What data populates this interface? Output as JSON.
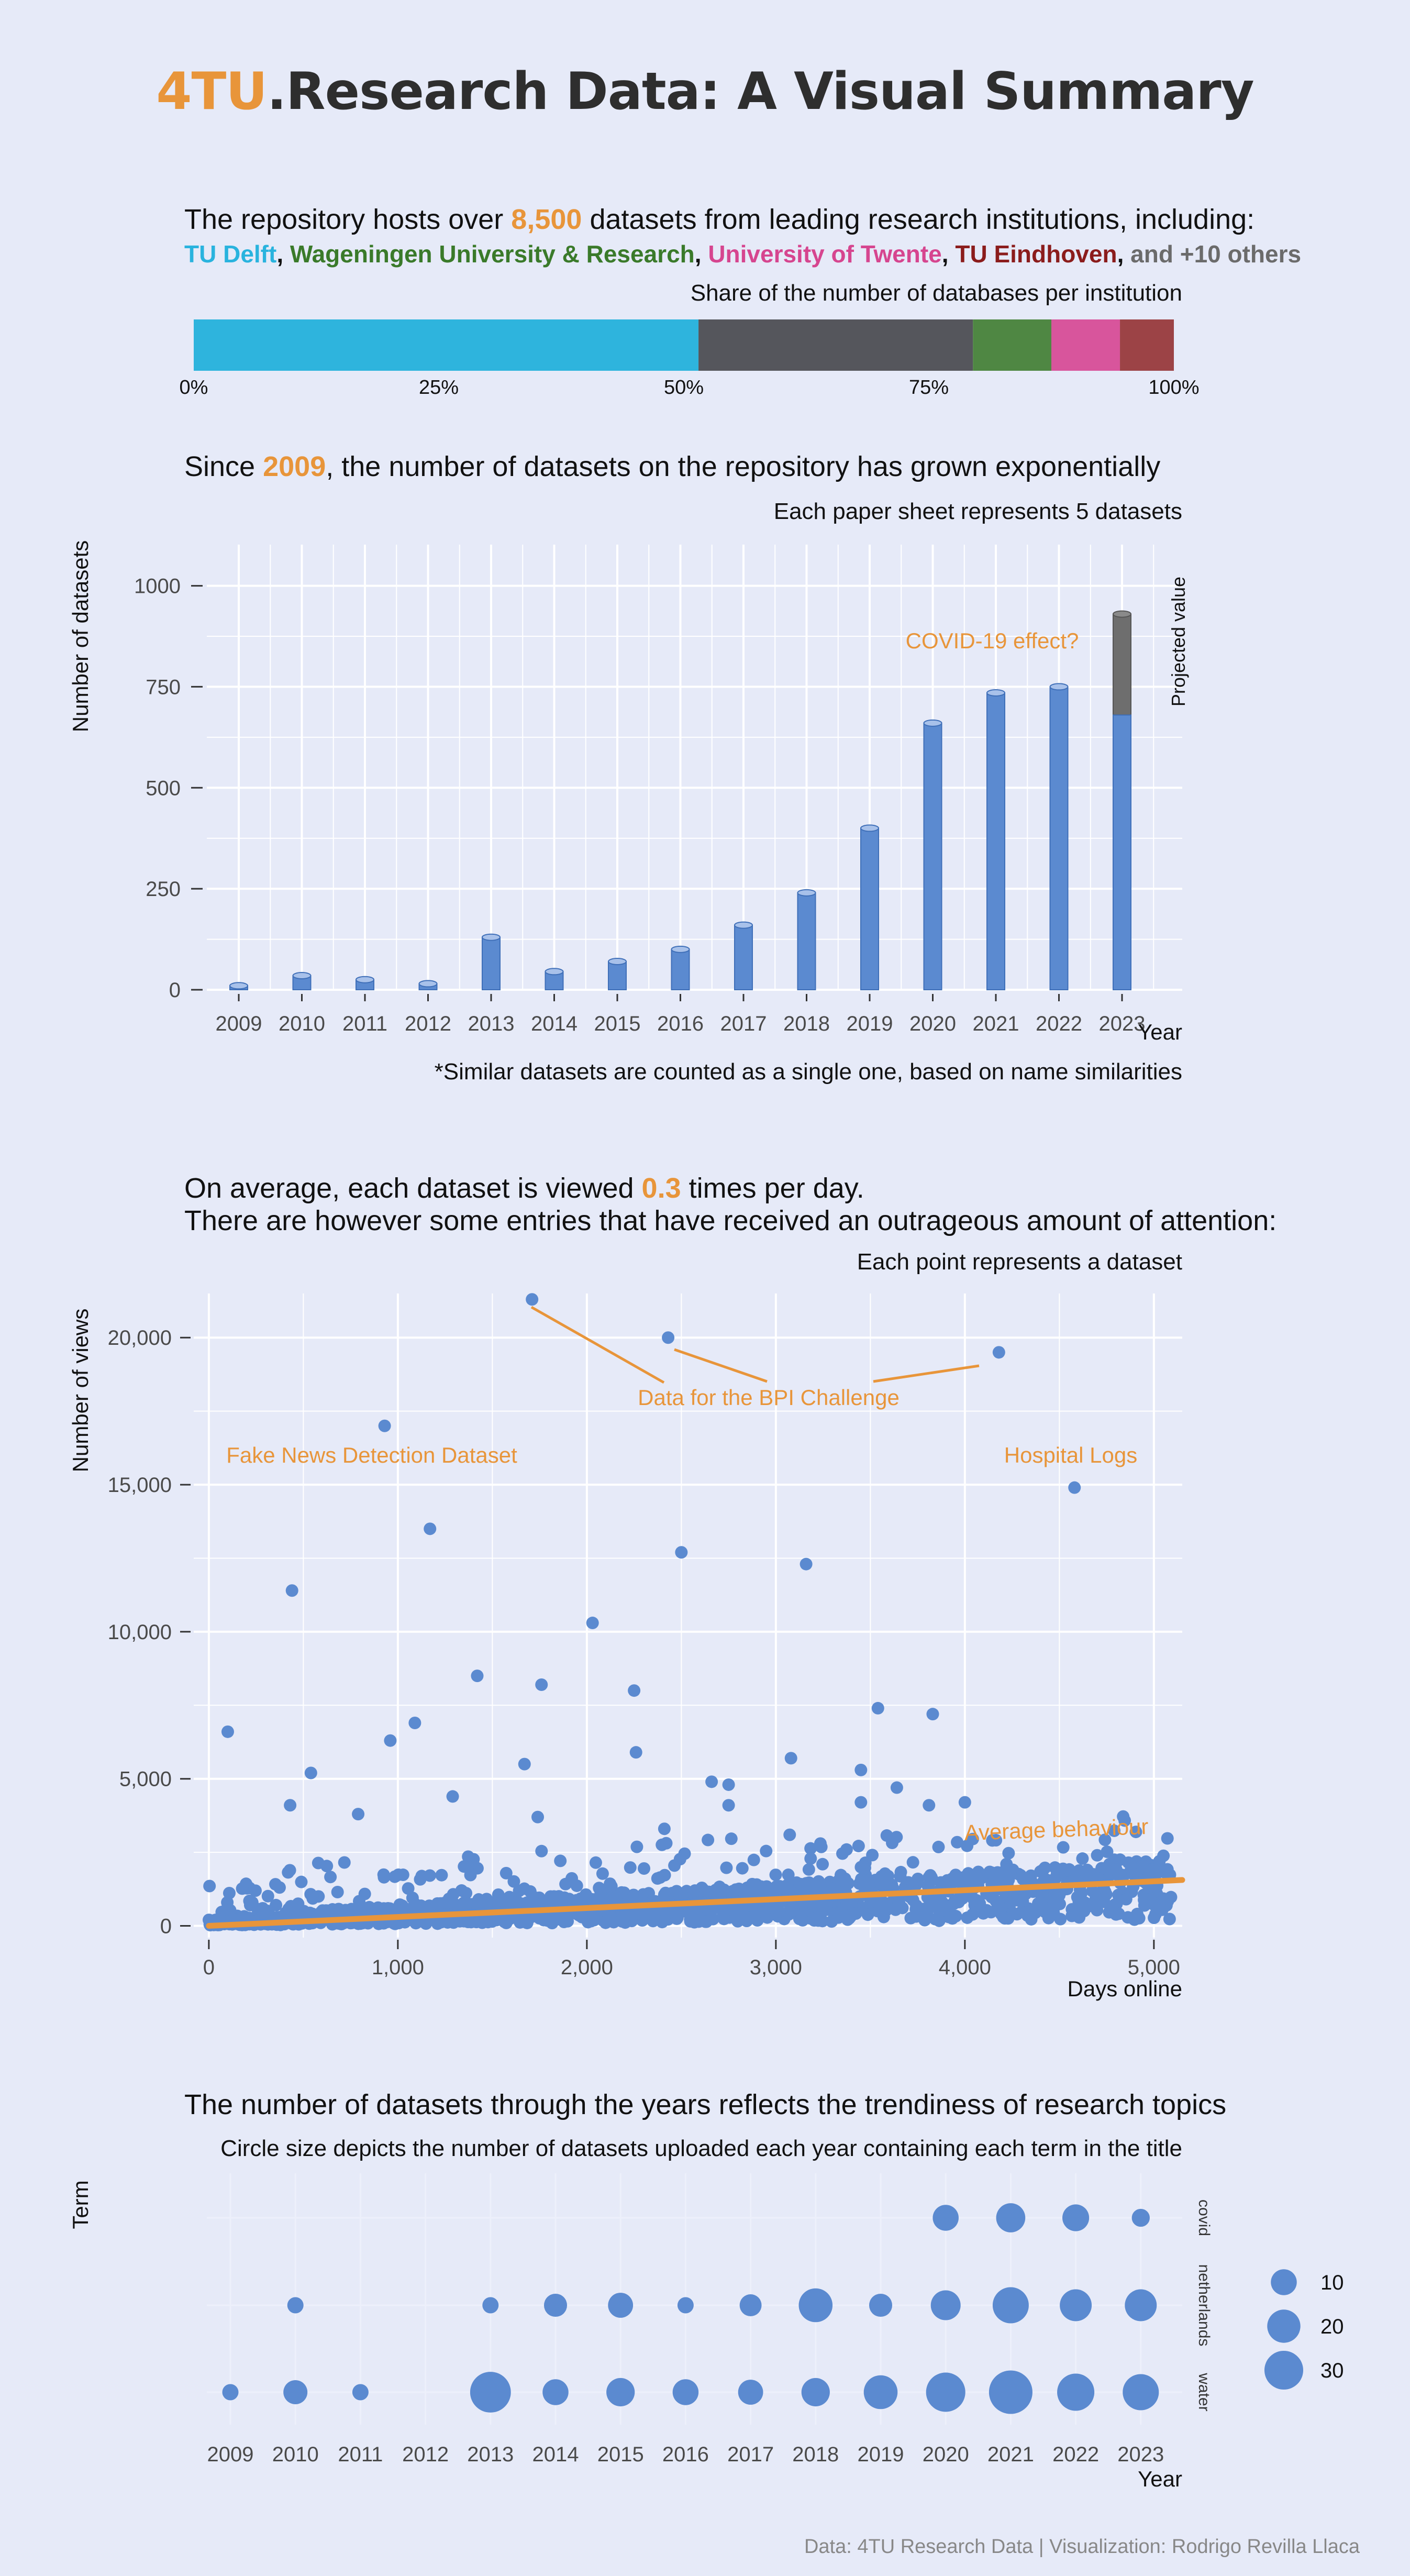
{
  "title": {
    "accent": "4TU",
    "rest": ".Research Data: A Visual Summary"
  },
  "section1": {
    "line_pre": "The repository hosts over",
    "count": "8,500",
    "line_post": "datasets from leading research institutions, including:",
    "institutions": [
      {
        "name": "TU Delft",
        "color": "#29b3de"
      },
      {
        "name": "Wageningen University & Research",
        "color": "#3a7a2a"
      },
      {
        "name": "University of Twente",
        "color": "#d6458f"
      },
      {
        "name": "TU Eindhoven",
        "color": "#8b1c1c"
      }
    ],
    "others": "and +10 others",
    "others_color": "#6b6b6b",
    "bar_title": "Share of the number of databases per institution"
  },
  "section2": {
    "line_pre": "Since",
    "year": "2009",
    "line_post": ", the number of datasets on the repository has grown exponentially",
    "subtitle": "Each paper sheet represents 5 datasets",
    "footnote": "*Similar datasets are counted as a single one, based on name similarities",
    "annotation": "COVID-19 effect?",
    "projected_label": "Projected value"
  },
  "section3": {
    "line1_pre": "On average, each dataset is viewed",
    "avg": "0.3",
    "line1_post": "times per day.",
    "line2": "There are however some entries that have received an outrageous amount of attention:",
    "subtitle": "Each point represents a dataset",
    "annotations": {
      "fake_news": "Fake News Detection Dataset",
      "bpi": "Data for the BPI Challenge",
      "hospital": "Hospital Logs",
      "avg": "Average behaviour"
    }
  },
  "section4": {
    "line": "The number of datasets through the years reflects the trendiness of research topics",
    "subtitle": "Circle size depicts the number of datasets uploaded each year containing each term in the title"
  },
  "footer": "Data: 4TU Research Data | Visualization: Rodrigo Revilla Llaca",
  "chart_data": [
    {
      "type": "bar",
      "orientation": "horizontal-stacked",
      "title": "Share of the number of databases per institution",
      "series": [
        {
          "name": "TU Delft",
          "value": 0.515,
          "color": "#2eb4dd"
        },
        {
          "name": "and +10 others",
          "value": 0.28,
          "color": "#55565c"
        },
        {
          "name": "Wageningen University & Research",
          "value": 0.08,
          "color": "#4f8743"
        },
        {
          "name": "University of Twente",
          "value": 0.07,
          "color": "#d8559c"
        },
        {
          "name": "TU Eindhoven",
          "value": 0.055,
          "color": "#9c4346"
        }
      ],
      "xlim": [
        0,
        1
      ],
      "ticks": [
        "0%",
        "25%",
        "50%",
        "75%",
        "100%"
      ]
    },
    {
      "type": "bar",
      "categories": [
        "2009",
        "2010",
        "2011",
        "2012",
        "2013",
        "2014",
        "2015",
        "2016",
        "2017",
        "2018",
        "2019",
        "2020",
        "2021",
        "2022",
        "2023"
      ],
      "values": [
        10,
        35,
        25,
        15,
        130,
        45,
        70,
        100,
        160,
        240,
        400,
        660,
        735,
        750,
        680
      ],
      "projected": {
        "category": "2023",
        "value": 930,
        "color": "#6e6e6e"
      },
      "xlabel": "Year",
      "ylabel": "Number of datasets",
      "ylim": [
        0,
        1050
      ],
      "yticks": [
        0,
        250,
        500,
        750,
        1000
      ],
      "bar_color": "#5b8ad0"
    },
    {
      "type": "scatter",
      "xlabel": "Days online",
      "ylabel": "Number of views",
      "xlim": [
        0,
        5150
      ],
      "ylim": [
        0,
        21500
      ],
      "xticks": [
        0,
        1000,
        2000,
        3000,
        4000,
        5000
      ],
      "xtick_labels": [
        "0",
        "1,000",
        "2,000",
        "3,000",
        "4,000",
        "5,000"
      ],
      "yticks": [
        0,
        5000,
        10000,
        15000,
        20000
      ],
      "ytick_labels": [
        "0",
        "5,000",
        "10,000",
        "15,000",
        "20,000"
      ],
      "trend": {
        "x": [
          0,
          5150
        ],
        "y": [
          0,
          1560
        ],
        "color": "#e8953a"
      },
      "point_color": "#5b8ad0",
      "outliers": [
        {
          "x": 1710,
          "y": 21300
        },
        {
          "x": 2430,
          "y": 20000
        },
        {
          "x": 4180,
          "y": 19500
        },
        {
          "x": 930,
          "y": 17000
        },
        {
          "x": 4580,
          "y": 14900
        },
        {
          "x": 1170,
          "y": 13500
        },
        {
          "x": 2500,
          "y": 12700
        },
        {
          "x": 3160,
          "y": 12300
        },
        {
          "x": 440,
          "y": 11400
        },
        {
          "x": 2030,
          "y": 10300
        },
        {
          "x": 1420,
          "y": 8500
        },
        {
          "x": 1760,
          "y": 8200
        },
        {
          "x": 2250,
          "y": 8000
        },
        {
          "x": 3540,
          "y": 7400
        },
        {
          "x": 3830,
          "y": 7200
        },
        {
          "x": 1090,
          "y": 6900
        },
        {
          "x": 100,
          "y": 6600
        },
        {
          "x": 960,
          "y": 6300
        },
        {
          "x": 2260,
          "y": 5900
        },
        {
          "x": 3080,
          "y": 5700
        },
        {
          "x": 1670,
          "y": 5500
        },
        {
          "x": 540,
          "y": 5200
        },
        {
          "x": 3450,
          "y": 5300
        },
        {
          "x": 2660,
          "y": 4900
        },
        {
          "x": 2750,
          "y": 4800
        },
        {
          "x": 3640,
          "y": 4700
        },
        {
          "x": 1290,
          "y": 4400
        },
        {
          "x": 4000,
          "y": 4200
        },
        {
          "x": 430,
          "y": 4100
        },
        {
          "x": 3810,
          "y": 4100
        },
        {
          "x": 3450,
          "y": 4200
        },
        {
          "x": 2750,
          "y": 4100
        },
        {
          "x": 790,
          "y": 3800
        },
        {
          "x": 1740,
          "y": 3700
        },
        {
          "x": 2410,
          "y": 3300
        },
        {
          "x": 4220,
          "y": 2100
        },
        {
          "x": 4700,
          "y": 2400
        },
        {
          "x": 5000,
          "y": 1900
        }
      ]
    },
    {
      "type": "scatter",
      "subtype": "bubble",
      "xlabel": "Year",
      "ylabel": "Term",
      "x": [
        "2009",
        "2010",
        "2011",
        "2012",
        "2013",
        "2014",
        "2015",
        "2016",
        "2017",
        "2018",
        "2019",
        "2020",
        "2021",
        "2022",
        "2023"
      ],
      "terms": [
        "covid",
        "netherlands",
        "water"
      ],
      "values": {
        "covid": [
          0,
          0,
          0,
          0,
          0,
          0,
          0,
          0,
          0,
          0,
          0,
          10,
          14,
          11,
          3
        ],
        "netherlands": [
          0,
          2,
          0,
          0,
          2,
          7,
          9,
          2,
          6,
          21,
          7,
          15,
          25,
          18,
          18
        ],
        "water": [
          2,
          8,
          2,
          0,
          34,
          10,
          13,
          10,
          9,
          13,
          21,
          31,
          40,
          27,
          25
        ]
      },
      "size_legend": [
        10,
        20,
        30
      ],
      "color": "#5b8ad0"
    }
  ]
}
